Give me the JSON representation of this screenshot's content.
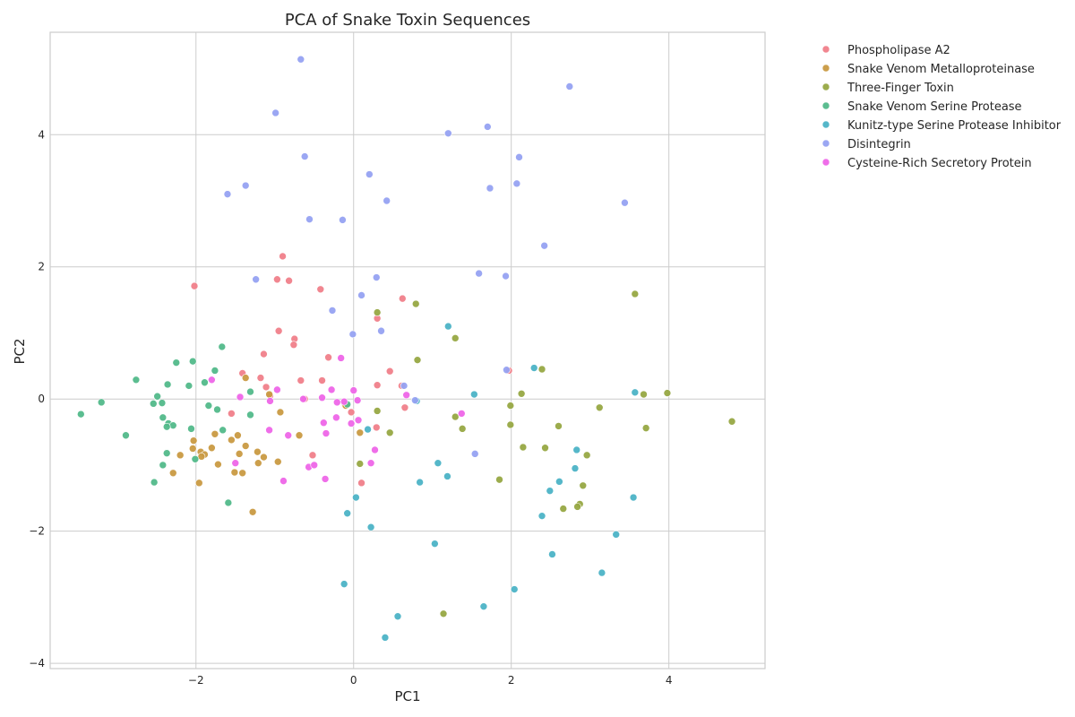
{
  "chart_data": {
    "type": "scatter",
    "title": "PCA of Snake Toxin Sequences",
    "xlabel": "PC1",
    "ylabel": "PC2",
    "xlim": [
      -3.85,
      5.22
    ],
    "ylim": [
      -4.08,
      5.55
    ],
    "xticks": [
      -2,
      0,
      2,
      4
    ],
    "yticks": [
      -4,
      -2,
      0,
      2,
      4
    ],
    "xtick_labels": [
      "−2",
      "0",
      "2",
      "4"
    ],
    "ytick_labels": [
      "−4",
      "−2",
      "0",
      "2",
      "4"
    ],
    "grid": true,
    "legend_position": "outside-top-right",
    "series": [
      {
        "name": "Phospholipase A2",
        "color": "#f07f8a",
        "points": [
          [
            -2.02,
            1.71
          ],
          [
            -0.9,
            2.16
          ],
          [
            -0.97,
            1.81
          ],
          [
            -0.82,
            1.79
          ],
          [
            -0.42,
            1.66
          ],
          [
            0.62,
            1.52
          ],
          [
            0.3,
            1.22
          ],
          [
            -0.95,
            1.03
          ],
          [
            -0.75,
            0.91
          ],
          [
            -0.76,
            0.82
          ],
          [
            -1.14,
            0.68
          ],
          [
            -0.32,
            0.63
          ],
          [
            0.46,
            0.42
          ],
          [
            -1.41,
            0.39
          ],
          [
            -1.18,
            0.32
          ],
          [
            -0.67,
            0.28
          ],
          [
            -0.4,
            0.28
          ],
          [
            0.3,
            0.21
          ],
          [
            0.61,
            0.2
          ],
          [
            -1.11,
            0.18
          ],
          [
            -1.06,
            0.05
          ],
          [
            -0.62,
            0.0
          ],
          [
            -0.11,
            -0.08
          ],
          [
            0.65,
            -0.13
          ],
          [
            -0.03,
            -0.2
          ],
          [
            -1.55,
            -0.22
          ],
          [
            0.29,
            -0.43
          ],
          [
            -0.52,
            -0.85
          ],
          [
            0.1,
            -1.27
          ],
          [
            1.97,
            0.43
          ]
        ]
      },
      {
        "name": "Snake Venom Metalloproteinase",
        "color": "#c99a42",
        "points": [
          [
            -1.37,
            0.32
          ],
          [
            -1.07,
            0.07
          ],
          [
            -0.93,
            -0.2
          ],
          [
            -0.69,
            -0.55
          ],
          [
            -1.47,
            -0.55
          ],
          [
            -1.55,
            -0.62
          ],
          [
            -1.76,
            -0.53
          ],
          [
            -2.03,
            -0.63
          ],
          [
            -2.04,
            -0.75
          ],
          [
            -1.8,
            -0.74
          ],
          [
            -1.94,
            -0.8
          ],
          [
            -1.89,
            -0.84
          ],
          [
            -1.93,
            -0.87
          ],
          [
            -2.2,
            -0.85
          ],
          [
            -1.45,
            -0.83
          ],
          [
            -1.37,
            -0.71
          ],
          [
            -1.22,
            -0.8
          ],
          [
            -1.14,
            -0.88
          ],
          [
            -1.72,
            -0.99
          ],
          [
            -0.96,
            -0.95
          ],
          [
            -1.21,
            -0.97
          ],
          [
            -1.51,
            -1.11
          ],
          [
            -1.41,
            -1.12
          ],
          [
            -2.29,
            -1.12
          ],
          [
            -1.96,
            -1.27
          ],
          [
            -1.28,
            -1.71
          ],
          [
            0.08,
            -0.51
          ],
          [
            -0.1,
            -0.1
          ]
        ]
      },
      {
        "name": "Three-Finger Toxin",
        "color": "#97a843",
        "points": [
          [
            3.57,
            1.59
          ],
          [
            0.79,
            1.44
          ],
          [
            0.3,
            1.31
          ],
          [
            1.29,
            0.92
          ],
          [
            0.81,
            0.59
          ],
          [
            2.39,
            0.45
          ],
          [
            2.13,
            0.08
          ],
          [
            3.98,
            0.09
          ],
          [
            3.68,
            0.07
          ],
          [
            3.12,
            -0.13
          ],
          [
            1.99,
            -0.1
          ],
          [
            0.3,
            -0.18
          ],
          [
            1.29,
            -0.27
          ],
          [
            4.8,
            -0.34
          ],
          [
            1.99,
            -0.39
          ],
          [
            2.6,
            -0.41
          ],
          [
            3.71,
            -0.44
          ],
          [
            1.38,
            -0.45
          ],
          [
            0.46,
            -0.51
          ],
          [
            2.15,
            -0.73
          ],
          [
            2.43,
            -0.74
          ],
          [
            2.96,
            -0.85
          ],
          [
            0.08,
            -0.98
          ],
          [
            1.85,
            -1.22
          ],
          [
            2.91,
            -1.31
          ],
          [
            2.87,
            -1.59
          ],
          [
            2.84,
            -1.63
          ],
          [
            2.66,
            -1.66
          ],
          [
            1.14,
            -3.25
          ]
        ]
      },
      {
        "name": "Snake Venom Serine Protease",
        "color": "#52b98a",
        "points": [
          [
            -1.67,
            0.79
          ],
          [
            -2.76,
            0.29
          ],
          [
            -2.04,
            0.57
          ],
          [
            -2.25,
            0.55
          ],
          [
            -1.76,
            0.43
          ],
          [
            -1.89,
            0.25
          ],
          [
            -2.36,
            0.22
          ],
          [
            -2.09,
            0.2
          ],
          [
            -1.31,
            0.11
          ],
          [
            -2.49,
            0.04
          ],
          [
            -2.54,
            -0.07
          ],
          [
            -2.43,
            -0.06
          ],
          [
            -1.84,
            -0.1
          ],
          [
            -1.73,
            -0.16
          ],
          [
            -2.42,
            -0.28
          ],
          [
            -1.31,
            -0.24
          ],
          [
            -3.46,
            -0.23
          ],
          [
            -3.2,
            -0.05
          ],
          [
            -2.35,
            -0.37
          ],
          [
            -2.29,
            -0.4
          ],
          [
            -2.37,
            -0.42
          ],
          [
            -2.06,
            -0.45
          ],
          [
            -1.66,
            -0.47
          ],
          [
            -2.89,
            -0.55
          ],
          [
            -2.37,
            -0.82
          ],
          [
            -2.01,
            -0.91
          ],
          [
            -2.42,
            -1.0
          ],
          [
            -2.53,
            -1.26
          ],
          [
            -1.59,
            -1.57
          ],
          [
            -0.08,
            -0.08
          ]
        ]
      },
      {
        "name": "Kunitz-type Serine Protease Inhibitor",
        "color": "#4cb3c6",
        "points": [
          [
            1.2,
            1.1
          ],
          [
            2.29,
            0.47
          ],
          [
            3.57,
            0.1
          ],
          [
            1.53,
            0.07
          ],
          [
            0.8,
            -0.03
          ],
          [
            0.18,
            -0.46
          ],
          [
            2.83,
            -0.77
          ],
          [
            1.07,
            -0.97
          ],
          [
            2.81,
            -1.05
          ],
          [
            1.19,
            -1.17
          ],
          [
            0.84,
            -1.26
          ],
          [
            2.61,
            -1.25
          ],
          [
            2.49,
            -1.39
          ],
          [
            0.03,
            -1.49
          ],
          [
            3.55,
            -1.49
          ],
          [
            -0.08,
            -1.73
          ],
          [
            2.39,
            -1.77
          ],
          [
            0.22,
            -1.94
          ],
          [
            3.33,
            -2.05
          ],
          [
            1.03,
            -2.19
          ],
          [
            2.52,
            -2.35
          ],
          [
            3.15,
            -2.63
          ],
          [
            -0.12,
            -2.8
          ],
          [
            2.04,
            -2.88
          ],
          [
            1.65,
            -3.14
          ],
          [
            0.56,
            -3.29
          ],
          [
            0.4,
            -3.61
          ]
        ]
      },
      {
        "name": "Disintegrin",
        "color": "#96a2f2",
        "points": [
          [
            -0.67,
            5.14
          ],
          [
            2.74,
            4.73
          ],
          [
            -0.99,
            4.33
          ],
          [
            1.7,
            4.12
          ],
          [
            1.2,
            4.02
          ],
          [
            -0.62,
            3.67
          ],
          [
            2.1,
            3.66
          ],
          [
            -1.37,
            3.23
          ],
          [
            2.07,
            3.26
          ],
          [
            1.73,
            3.19
          ],
          [
            -1.6,
            3.1
          ],
          [
            0.42,
            3.0
          ],
          [
            3.44,
            2.97
          ],
          [
            -0.56,
            2.72
          ],
          [
            -0.14,
            2.71
          ],
          [
            0.2,
            3.4
          ],
          [
            2.42,
            2.32
          ],
          [
            1.59,
            1.9
          ],
          [
            1.93,
            1.86
          ],
          [
            0.29,
            1.84
          ],
          [
            -1.24,
            1.81
          ],
          [
            0.1,
            1.57
          ],
          [
            -0.27,
            1.34
          ],
          [
            0.35,
            1.03
          ],
          [
            -0.01,
            0.98
          ],
          [
            1.94,
            0.44
          ],
          [
            0.64,
            0.2
          ],
          [
            0.78,
            -0.02
          ],
          [
            1.54,
            -0.83
          ]
        ]
      },
      {
        "name": "Cysteine-Rich Secretory Protein",
        "color": "#ee66e8",
        "points": [
          [
            -0.16,
            0.62
          ],
          [
            -1.8,
            0.29
          ],
          [
            -0.28,
            0.14
          ],
          [
            0.0,
            0.13
          ],
          [
            -0.97,
            0.14
          ],
          [
            0.67,
            0.06
          ],
          [
            -1.44,
            0.03
          ],
          [
            -0.4,
            0.02
          ],
          [
            -0.64,
            0.0
          ],
          [
            0.05,
            -0.02
          ],
          [
            -1.06,
            -0.03
          ],
          [
            -0.21,
            -0.05
          ],
          [
            -0.12,
            -0.04
          ],
          [
            1.37,
            -0.22
          ],
          [
            0.06,
            -0.32
          ],
          [
            -0.22,
            -0.28
          ],
          [
            -0.03,
            -0.37
          ],
          [
            -0.38,
            -0.36
          ],
          [
            -1.07,
            -0.47
          ],
          [
            -0.83,
            -0.55
          ],
          [
            -0.35,
            -0.52
          ],
          [
            0.27,
            -0.77
          ],
          [
            -1.5,
            -0.97
          ],
          [
            -0.57,
            -1.03
          ],
          [
            -0.5,
            -1.0
          ],
          [
            0.22,
            -0.97
          ],
          [
            -0.36,
            -1.21
          ],
          [
            -0.89,
            -1.24
          ]
        ]
      }
    ]
  }
}
